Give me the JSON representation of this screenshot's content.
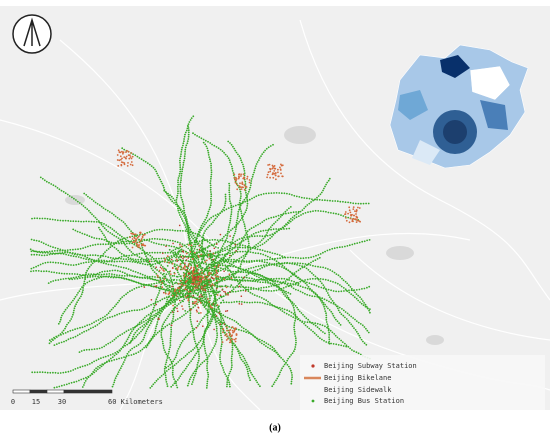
{
  "legend": {
    "items": [
      "Beijing Subway Station",
      "Beijing Bikelane",
      "Beijing Sidewalk",
      "Beijing Bus Station"
    ]
  },
  "scale_bar": {
    "labels": [
      "0",
      "15",
      "30",
      "60 Kilometers"
    ]
  },
  "caption": "(a)"
}
